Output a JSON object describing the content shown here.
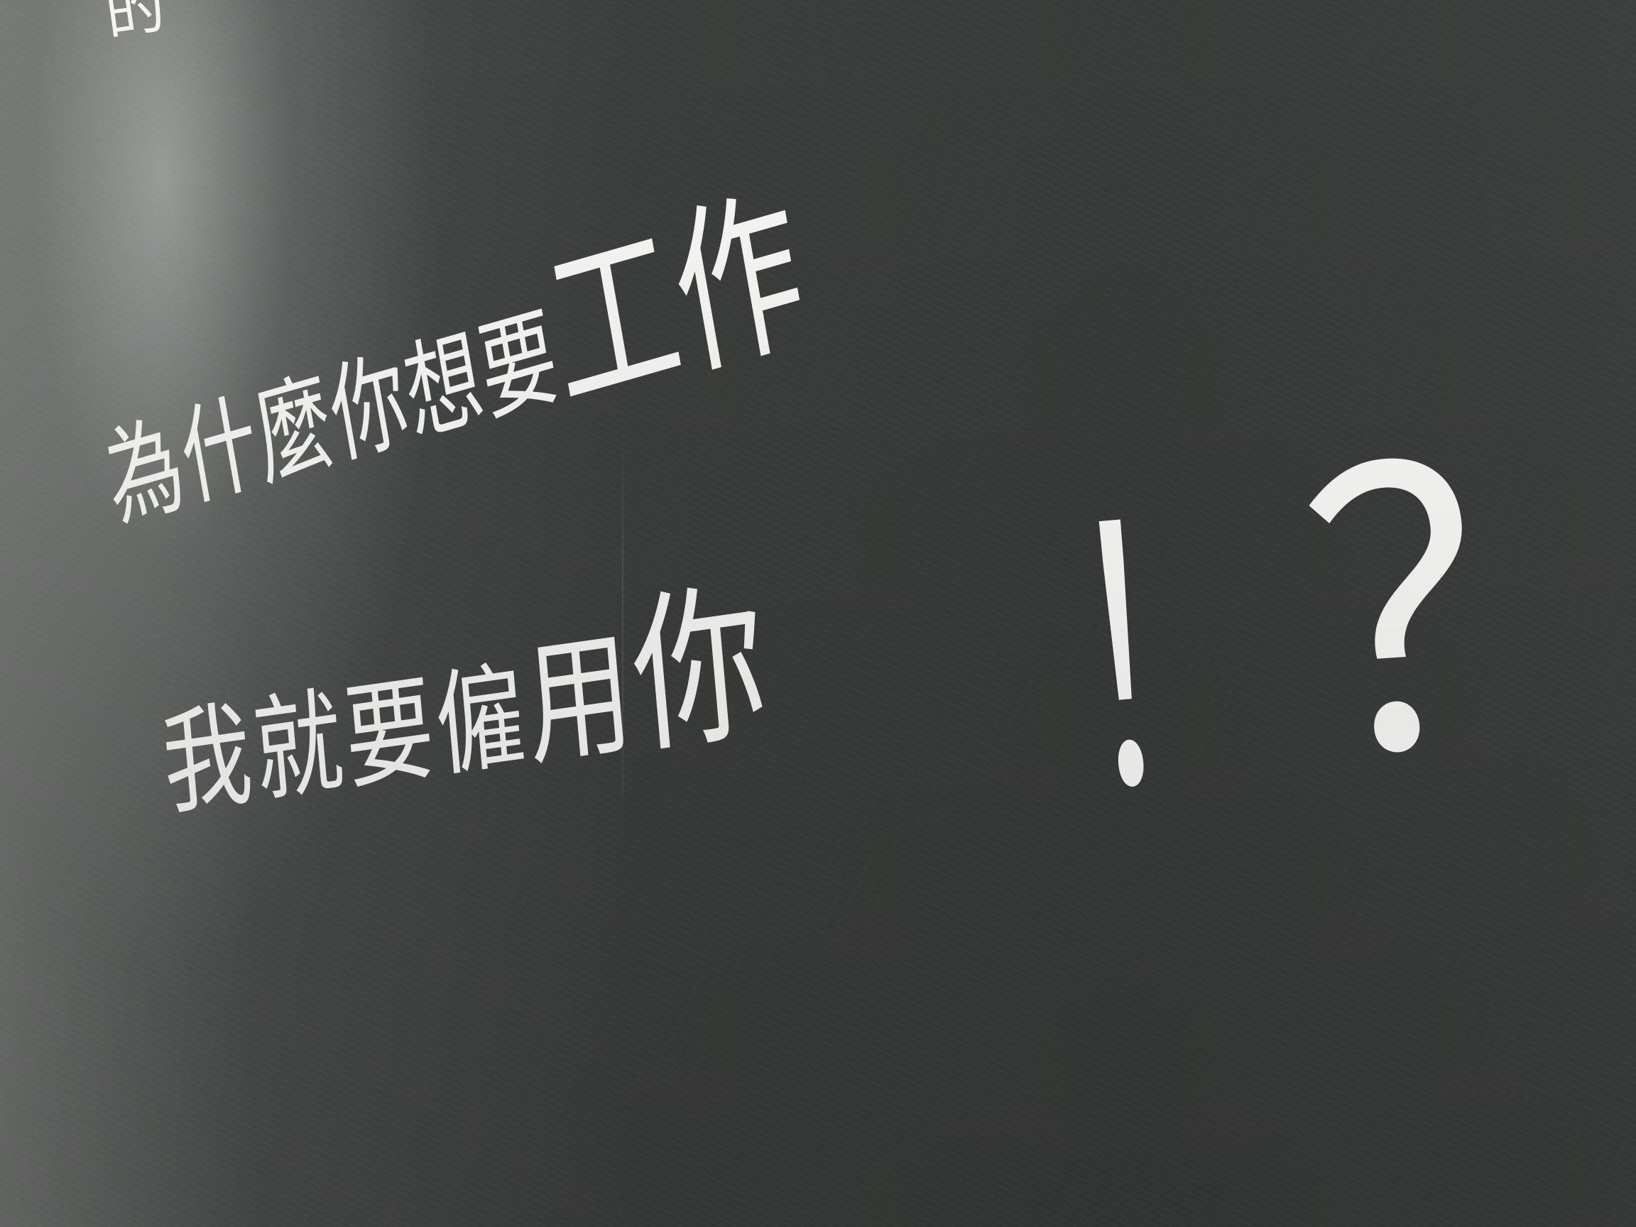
{
  "sign": {
    "corner_glyph": "的",
    "line1_part1": "為什麼你想要",
    "line1_part2": "工作",
    "line2_part1": "我就要僱",
    "line2_part2": "用你",
    "exclamation": "！",
    "question": "？"
  },
  "colors": {
    "wall": "#3a3c3b",
    "text": "#f7f7f5"
  }
}
